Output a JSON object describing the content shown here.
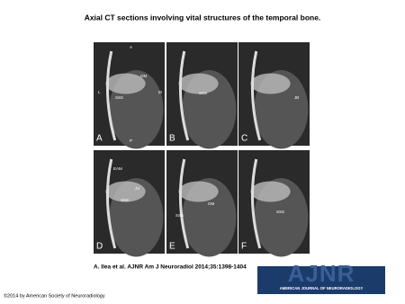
{
  "header": {
    "title": "Axial CT sections involving vital structures of the temporal bone."
  },
  "panels": [
    {
      "letter": "A",
      "labels": [
        "A",
        "L",
        "M",
        "P",
        "OM",
        "SSS"
      ]
    },
    {
      "letter": "B",
      "labels": [
        "SSS"
      ]
    },
    {
      "letter": "C",
      "labels": [
        "JB"
      ]
    },
    {
      "letter": "D",
      "labels": [
        "EAM",
        "JV",
        "SSS"
      ]
    },
    {
      "letter": "E",
      "labels": [
        "OM",
        "SSS"
      ]
    },
    {
      "letter": "F",
      "labels": [
        "SSS"
      ]
    }
  ],
  "citation": "A. Ilea et al. AJNR Am J Neuroradiol 2014;35:1398-1404",
  "logo": {
    "name": "AJNR",
    "subtitle": "AMERICAN JOURNAL OF NEURORADIOLOGY"
  },
  "copyright": "©2014 by American Society of Neuroradiology"
}
